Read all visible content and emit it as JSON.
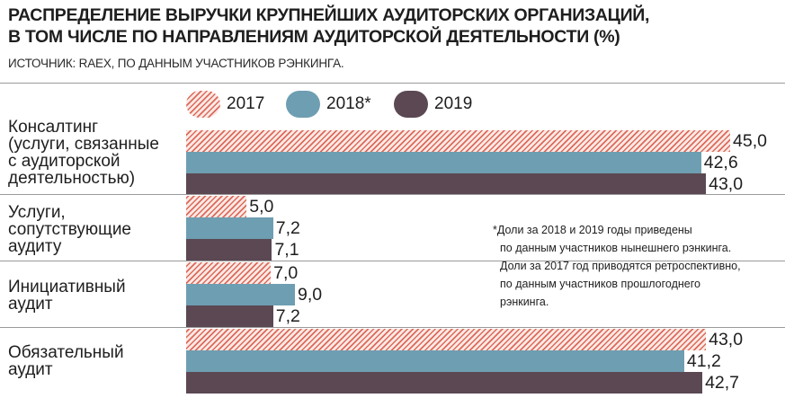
{
  "title": {
    "line1": "РАСПРЕДЕЛЕНИЕ ВЫРУЧКИ КРУПНЕЙШИХ АУДИТОРСКИХ ОРГАНИЗАЦИЙ,",
    "line2": "В ТОМ ЧИСЛЕ ПО НАПРАВЛЕНИЯМ АУДИТОРСКОЙ ДЕЯТЕЛЬНОСТИ (%)"
  },
  "source": "ИСТОЧНИК: RAEX, ПО ДАННЫМ УЧАСТНИКОВ РЭНКИНГА.",
  "legend": [
    {
      "label": "2017",
      "color": "#dc6a5c",
      "pattern": "hatched"
    },
    {
      "label": "2018*",
      "color": "#6e9eb1"
    },
    {
      "label": "2019",
      "color": "#5b4853"
    }
  ],
  "note": {
    "line1": "*Доли за 2018 и 2019 годы приведены",
    "line2": "по данным участников нынешнего рэнкинга.",
    "line3": "Доли за 2017 год приводятся ретроспективно,",
    "line4": "по данным участников прошлогоднего",
    "line5": "рэнкинга."
  },
  "chart_data": {
    "type": "bar",
    "orientation": "horizontal",
    "categories": [
      "Консалтинг\n(услуги, связанные\nс аудиторской\nдеятельностью)",
      "Услуги,\nсопутствующие\nаудиту",
      "Инициативный\nаудит",
      "Обязательный\nаудит"
    ],
    "series": [
      {
        "name": "2017",
        "values": [
          45.0,
          5.0,
          7.0,
          43.0
        ],
        "labels": [
          "45,0",
          "5,0",
          "7,0",
          "43,0"
        ]
      },
      {
        "name": "2018*",
        "values": [
          42.6,
          7.2,
          9.0,
          41.2
        ],
        "labels": [
          "42,6",
          "7,2",
          "9,0",
          "41,2"
        ]
      },
      {
        "name": "2019",
        "values": [
          43.0,
          7.1,
          7.2,
          42.7
        ],
        "labels": [
          "43,0",
          "7,1",
          "7,2",
          "42,7"
        ]
      }
    ],
    "xlim": [
      0,
      45
    ],
    "grid": false,
    "legend_position": "top"
  }
}
